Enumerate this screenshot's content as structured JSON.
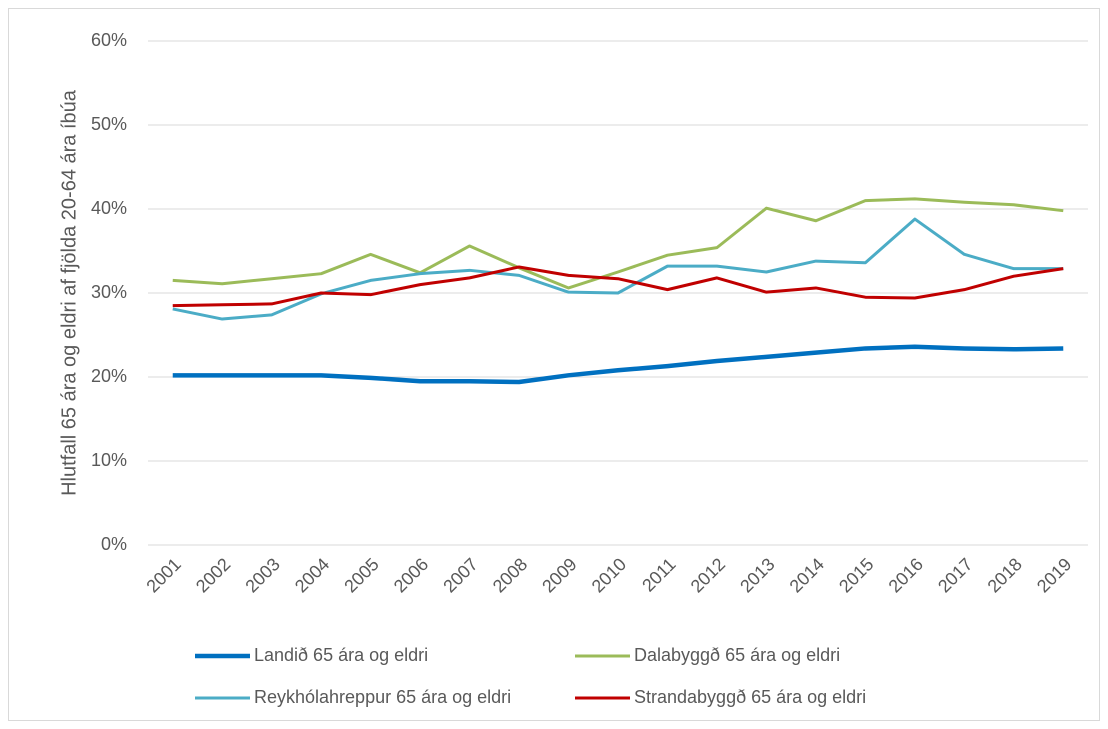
{
  "chart_data": {
    "type": "line",
    "y_axis_label": "Hlutfall  65 ára og eldri af fjölda 20-64 ára íbúa",
    "categories": [
      "2001",
      "2002",
      "2003",
      "2004",
      "2005",
      "2006",
      "2007",
      "2008",
      "2009",
      "2010",
      "2011",
      "2012",
      "2013",
      "2014",
      "2015",
      "2016",
      "2017",
      "2018",
      "2019"
    ],
    "series": [
      {
        "name": "Landið 65 ára og eldri",
        "color": "#0070c0",
        "values": [
          20.2,
          20.2,
          20.2,
          20.2,
          19.9,
          19.5,
          19.5,
          19.4,
          20.2,
          20.8,
          21.3,
          21.9,
          22.4,
          22.9,
          23.4,
          23.6,
          23.4,
          23.3,
          23.4
        ]
      },
      {
        "name": "Dalabyggð 65 ára og eldri",
        "color": "#9bbb59",
        "values": [
          31.5,
          31.1,
          31.7,
          32.3,
          34.6,
          32.4,
          35.6,
          33.0,
          30.6,
          32.5,
          34.5,
          35.4,
          40.1,
          38.6,
          41.0,
          41.2,
          40.8,
          40.5,
          39.8
        ]
      },
      {
        "name": "Reykhólahreppur 65 ára og eldri",
        "color": "#4bacc6",
        "values": [
          28.1,
          26.9,
          27.4,
          29.9,
          31.5,
          32.3,
          32.7,
          32.1,
          30.1,
          30.0,
          33.2,
          33.2,
          32.5,
          33.8,
          33.6,
          38.8,
          34.6,
          32.9,
          32.9
        ]
      },
      {
        "name": "Strandabyggð 65 ára og eldri",
        "color": "#c00000",
        "values": [
          28.5,
          28.6,
          28.7,
          30.0,
          29.8,
          31.0,
          31.8,
          33.1,
          32.1,
          31.7,
          30.4,
          31.8,
          30.1,
          30.6,
          29.5,
          29.4,
          30.4,
          32.0,
          32.9
        ]
      }
    ],
    "ylim": [
      0,
      60
    ],
    "yticks": [
      {
        "value": 0,
        "label": "0%"
      },
      {
        "value": 10,
        "label": "10%"
      },
      {
        "value": 20,
        "label": "20%"
      },
      {
        "value": 30,
        "label": "30%"
      },
      {
        "value": 40,
        "label": "40%"
      },
      {
        "value": 50,
        "label": "50%"
      },
      {
        "value": 60,
        "label": "60%"
      }
    ],
    "grid": true,
    "legend": "bottom"
  }
}
